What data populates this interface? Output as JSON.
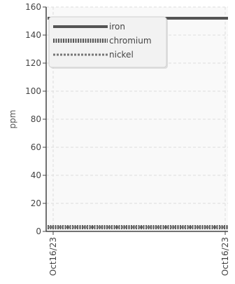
{
  "chart_data": {
    "type": "line",
    "title": "",
    "xlabel": "",
    "ylabel": "ppm",
    "ylim": [
      0,
      160
    ],
    "yticks": [
      0,
      20,
      40,
      60,
      80,
      100,
      120,
      140,
      160
    ],
    "x_tick_labels": [
      "Oct16/23",
      "Oct16/23"
    ],
    "grid": true,
    "legend_position": "top-left",
    "series": [
      {
        "name": "iron",
        "values": [
          152,
          152
        ],
        "color": "#555555",
        "style": "solid"
      },
      {
        "name": "chromium",
        "values": [
          3,
          3
        ],
        "color": "#555555",
        "style": "dotted"
      },
      {
        "name": "nickel",
        "values": [
          3,
          3
        ],
        "color": "#777777",
        "style": "dashed"
      }
    ]
  }
}
